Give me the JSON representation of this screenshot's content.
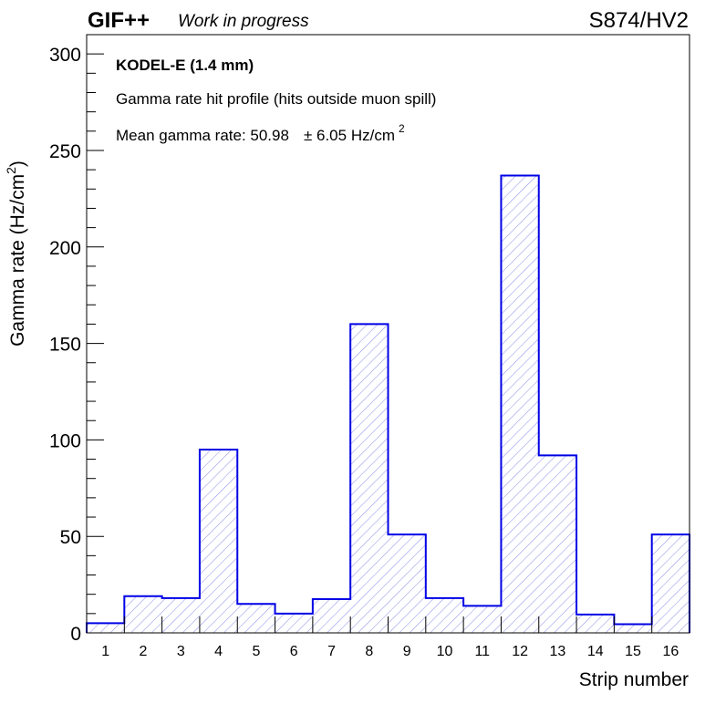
{
  "header": {
    "experiment": "GIF++",
    "status": "Work in progress",
    "run_label": "S874/HV2"
  },
  "annotations": {
    "chamber": "KODEL-E (1.4 mm)",
    "profile": "Gamma rate hit profile (hits outside muon spill)",
    "mean_prefix": "Mean gamma rate: 50.98",
    "mean_error": "± 6.05 Hz/cm",
    "mean_error_sup": "2"
  },
  "chart_data": {
    "type": "bar",
    "style": "histogram-step, hatched fill",
    "categories": [
      "1",
      "2",
      "3",
      "4",
      "5",
      "6",
      "7",
      "8",
      "9",
      "10",
      "11",
      "12",
      "13",
      "14",
      "15",
      "16"
    ],
    "series": [
      {
        "values": [
          5,
          19,
          18,
          95,
          15,
          10,
          17.5,
          160,
          51,
          18,
          14,
          237,
          92,
          9.5,
          4.5,
          51
        ]
      }
    ],
    "xlabel": "Strip number",
    "ylabel": "Gamma rate (Hz/cm",
    "ylabel_sup": "2",
    "ylabel_close": ")",
    "ylim": [
      0,
      310
    ],
    "yticks": [
      "0",
      "50",
      "100",
      "150",
      "200",
      "250",
      "300"
    ],
    "grid": false,
    "colors": {
      "line": "#0000e6",
      "hatch": "#7f7fe6",
      "frame": "#000000"
    }
  }
}
